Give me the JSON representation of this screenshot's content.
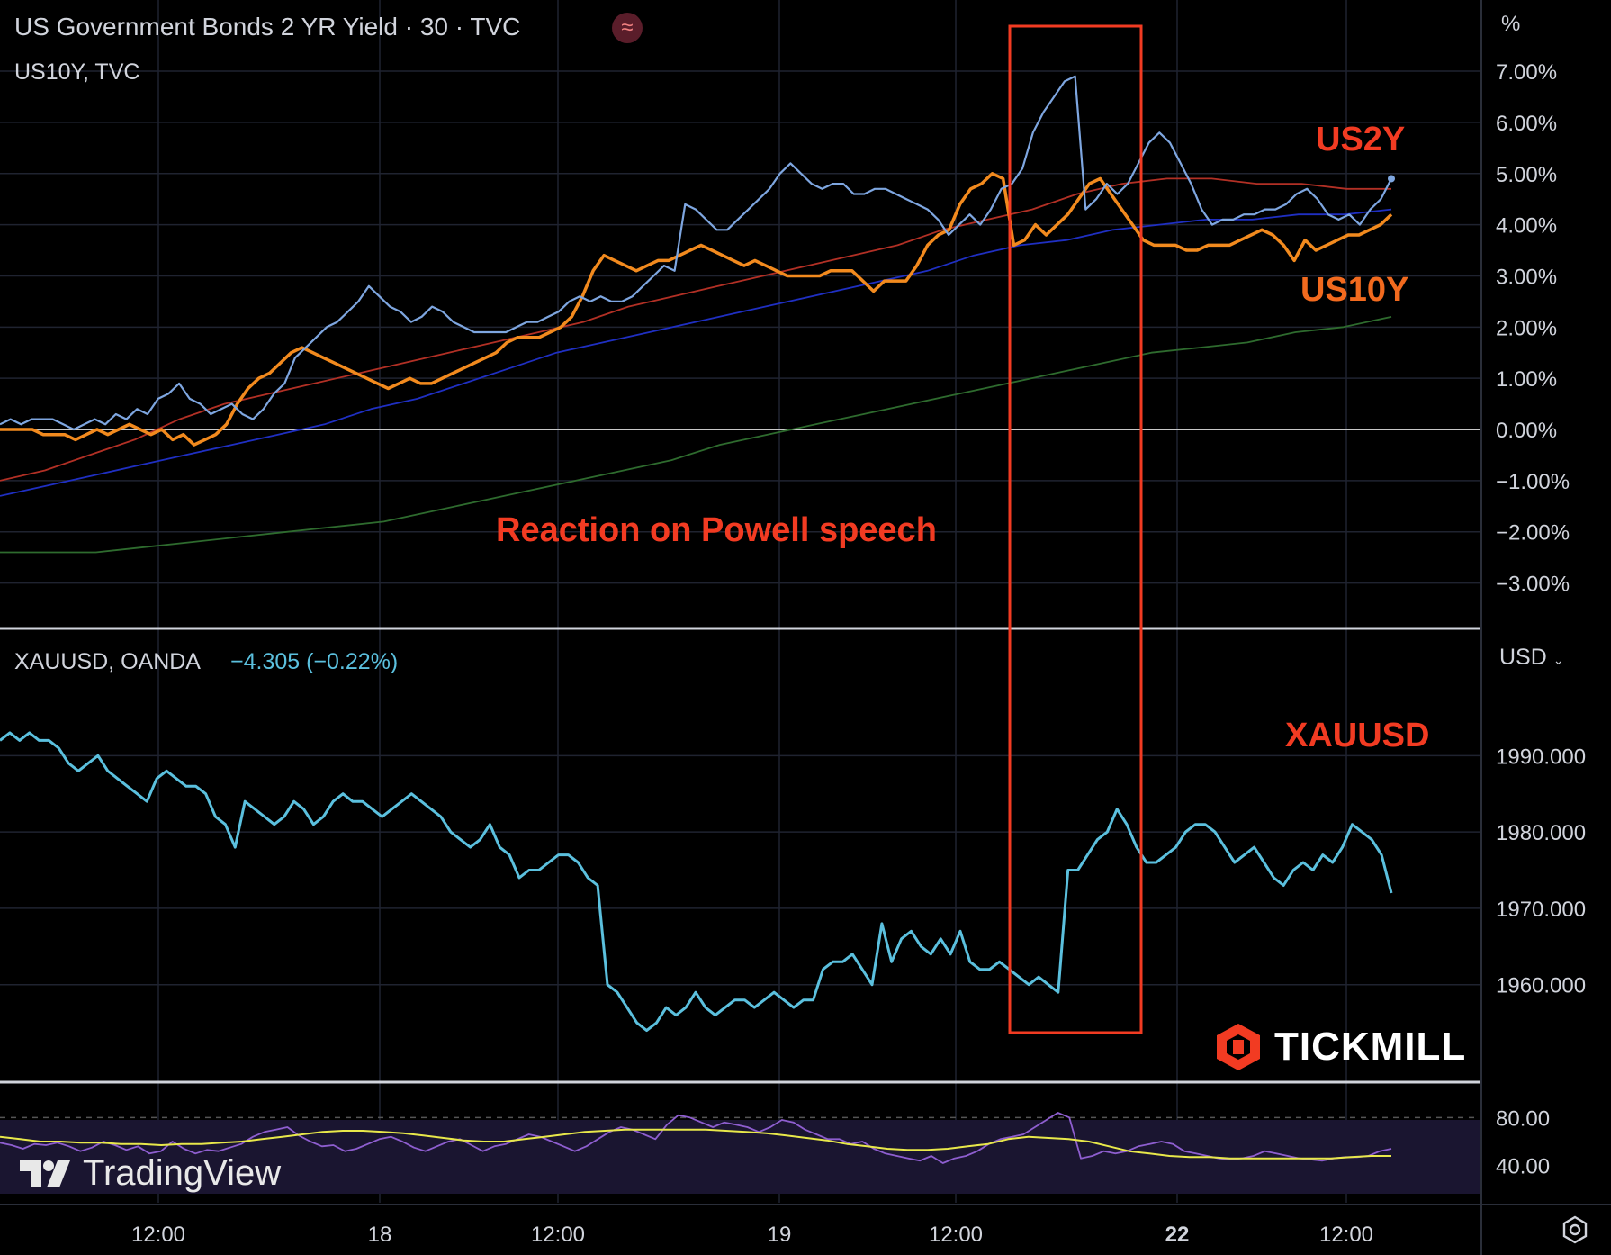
{
  "header": {
    "title": "US Government Bonds 2 YR Yield · 30 · TVC",
    "secondary_symbol": "US10Y, TVC",
    "indicator_badge": "≈"
  },
  "lower_header": {
    "symbol": "XAUUSD, OANDA",
    "change": "−4.305 (−0.22%)",
    "currency": "USD"
  },
  "annotations": {
    "us2y": "US2Y",
    "us10y": "US10Y",
    "xauusd": "XAUUSD",
    "powell": "Reaction on Powell speech"
  },
  "branding": {
    "tradingview": "TradingView",
    "tickmill": "TICKMILL"
  },
  "icons": {
    "settings": "gear-icon"
  },
  "colors": {
    "us2y": "#7ea6e0",
    "us10y": "#f28a1e",
    "xauusd": "#5bc0de",
    "ma_red": "#b23025",
    "ma_blue": "#1f2fc2",
    "ma_green": "#2e6b2e",
    "rsi": "#8e5ecf",
    "rsi_ma": "#e8e84a",
    "annotation": "#f23b22"
  },
  "chart_data": [
    {
      "type": "line",
      "panel": "yields",
      "ylabel": "%",
      "ylim": [
        -3.5,
        7.3
      ],
      "y_ticks": [
        "7.00%",
        "6.00%",
        "5.00%",
        "4.00%",
        "3.00%",
        "2.00%",
        "1.00%",
        "0.00%",
        "−1.00%",
        "−2.00%",
        "−3.00%"
      ],
      "y_tick_values": [
        7,
        6,
        5,
        4,
        3,
        2,
        1,
        0,
        -1,
        -2,
        -3
      ],
      "x_ticks": [
        "12:00",
        "18",
        "12:00",
        "19",
        "12:00",
        "22",
        "12:00"
      ],
      "series": [
        {
          "name": "US2Y",
          "values": [
            0.1,
            0.2,
            0.1,
            0.2,
            0.2,
            0.2,
            0.1,
            0.0,
            0.1,
            0.2,
            0.1,
            0.3,
            0.2,
            0.4,
            0.3,
            0.6,
            0.7,
            0.9,
            0.6,
            0.5,
            0.3,
            0.4,
            0.5,
            0.3,
            0.2,
            0.4,
            0.7,
            0.9,
            1.4,
            1.6,
            1.8,
            2.0,
            2.1,
            2.3,
            2.5,
            2.8,
            2.6,
            2.4,
            2.3,
            2.1,
            2.2,
            2.4,
            2.3,
            2.1,
            2.0,
            1.9,
            1.9,
            1.9,
            1.9,
            2.0,
            2.1,
            2.1,
            2.2,
            2.3,
            2.5,
            2.6,
            2.5,
            2.6,
            2.5,
            2.5,
            2.6,
            2.8,
            3.0,
            3.2,
            3.1,
            4.4,
            4.3,
            4.1,
            3.9,
            3.9,
            4.1,
            4.3,
            4.5,
            4.7,
            5.0,
            5.2,
            5.0,
            4.8,
            4.7,
            4.8,
            4.8,
            4.6,
            4.6,
            4.7,
            4.7,
            4.6,
            4.5,
            4.4,
            4.3,
            4.1,
            3.8,
            4.0,
            4.2,
            4.0,
            4.3,
            4.7,
            4.8,
            5.1,
            5.8,
            6.2,
            6.5,
            6.8,
            6.9,
            4.3,
            4.5,
            4.8,
            4.6,
            4.8,
            5.2,
            5.6,
            5.8,
            5.6,
            5.2,
            4.8,
            4.3,
            4.0,
            4.1,
            4.1,
            4.2,
            4.2,
            4.3,
            4.3,
            4.4,
            4.6,
            4.7,
            4.5,
            4.2,
            4.1,
            4.2,
            4.0,
            4.3,
            4.5,
            4.9
          ]
        },
        {
          "name": "US10Y",
          "values": [
            0.0,
            0.0,
            0.0,
            0.0,
            -0.1,
            -0.1,
            -0.1,
            -0.2,
            -0.1,
            0.0,
            -0.1,
            0.0,
            0.1,
            0.0,
            -0.1,
            0.0,
            -0.2,
            -0.1,
            -0.3,
            -0.2,
            -0.1,
            0.1,
            0.5,
            0.8,
            1.0,
            1.1,
            1.3,
            1.5,
            1.6,
            1.5,
            1.4,
            1.3,
            1.2,
            1.1,
            1.0,
            0.9,
            0.8,
            0.9,
            1.0,
            0.9,
            0.9,
            1.0,
            1.1,
            1.2,
            1.3,
            1.4,
            1.5,
            1.7,
            1.8,
            1.8,
            1.8,
            1.9,
            2.0,
            2.2,
            2.6,
            3.1,
            3.4,
            3.3,
            3.2,
            3.1,
            3.2,
            3.3,
            3.3,
            3.4,
            3.5,
            3.6,
            3.5,
            3.4,
            3.3,
            3.2,
            3.3,
            3.2,
            3.1,
            3.0,
            3.0,
            3.0,
            3.0,
            3.1,
            3.1,
            3.1,
            2.9,
            2.7,
            2.9,
            2.9,
            2.9,
            3.2,
            3.6,
            3.8,
            3.9,
            4.4,
            4.7,
            4.8,
            5.0,
            4.9,
            3.6,
            3.7,
            4.0,
            3.8,
            4.0,
            4.2,
            4.5,
            4.8,
            4.9,
            4.6,
            4.3,
            4.0,
            3.7,
            3.6,
            3.6,
            3.6,
            3.5,
            3.5,
            3.6,
            3.6,
            3.6,
            3.7,
            3.8,
            3.9,
            3.8,
            3.6,
            3.3,
            3.7,
            3.5,
            3.6,
            3.7,
            3.8,
            3.8,
            3.9,
            4.0,
            4.2
          ]
        },
        {
          "values": [
            -1.0,
            -0.8,
            -0.5,
            -0.2,
            0.2,
            0.5,
            0.7,
            0.9,
            1.1,
            1.3,
            1.5,
            1.7,
            1.9,
            2.1,
            2.4,
            2.6,
            2.8,
            3.0,
            3.2,
            3.4,
            3.6,
            3.9,
            4.1,
            4.3,
            4.6,
            4.8,
            4.9,
            4.9,
            4.8,
            4.8,
            4.7,
            4.7
          ]
        },
        {
          "values": [
            -1.3,
            -1.1,
            -0.9,
            -0.7,
            -0.5,
            -0.3,
            -0.1,
            0.1,
            0.4,
            0.6,
            0.9,
            1.2,
            1.5,
            1.7,
            1.9,
            2.1,
            2.3,
            2.5,
            2.7,
            2.9,
            3.1,
            3.4,
            3.6,
            3.7,
            3.9,
            4.0,
            4.1,
            4.1,
            4.2,
            4.2,
            4.3
          ]
        },
        {
          "values": [
            -2.4,
            -2.4,
            -2.4,
            -2.3,
            -2.2,
            -2.1,
            -2.0,
            -1.9,
            -1.8,
            -1.6,
            -1.4,
            -1.2,
            -1.0,
            -0.8,
            -0.6,
            -0.3,
            -0.1,
            0.1,
            0.3,
            0.5,
            0.7,
            0.9,
            1.1,
            1.3,
            1.5,
            1.6,
            1.7,
            1.9,
            2.0,
            2.2
          ]
        }
      ]
    },
    {
      "type": "line",
      "panel": "gold",
      "ylabel": "USD",
      "ylim": [
        1951,
        1997
      ],
      "y_ticks": [
        "1990.000",
        "1980.000",
        "1970.000",
        "1960.000"
      ],
      "y_tick_values": [
        1990,
        1980,
        1970,
        1960
      ],
      "series": [
        {
          "name": "XAUUSD",
          "values": [
            1992,
            1993,
            1992,
            1993,
            1992,
            1992,
            1991,
            1989,
            1988,
            1989,
            1990,
            1988,
            1987,
            1986,
            1985,
            1984,
            1987,
            1988,
            1987,
            1986,
            1986,
            1985,
            1982,
            1981,
            1978,
            1984,
            1983,
            1982,
            1981,
            1982,
            1984,
            1983,
            1981,
            1982,
            1984,
            1985,
            1984,
            1984,
            1983,
            1982,
            1983,
            1984,
            1985,
            1984,
            1983,
            1982,
            1980,
            1979,
            1978,
            1979,
            1981,
            1978,
            1977,
            1974,
            1975,
            1975,
            1976,
            1977,
            1977,
            1976,
            1974,
            1973,
            1960,
            1959,
            1957,
            1955,
            1954,
            1955,
            1957,
            1956,
            1957,
            1959,
            1957,
            1956,
            1957,
            1958,
            1958,
            1957,
            1958,
            1959,
            1958,
            1957,
            1958,
            1958,
            1962,
            1963,
            1963,
            1964,
            1962,
            1960,
            1968,
            1963,
            1966,
            1967,
            1965,
            1964,
            1966,
            1964,
            1967,
            1963,
            1962,
            1962,
            1963,
            1962,
            1961,
            1960,
            1961,
            1960,
            1959,
            1975,
            1975,
            1977,
            1979,
            1980,
            1983,
            1981,
            1978,
            1976,
            1976,
            1977,
            1978,
            1980,
            1981,
            1981,
            1980,
            1978,
            1976,
            1977,
            1978,
            1976,
            1974,
            1973,
            1975,
            1976,
            1975,
            1977,
            1976,
            1978,
            1981,
            1980,
            1979,
            1977,
            1972
          ]
        }
      ]
    },
    {
      "type": "line",
      "panel": "rsi",
      "ylim": [
        30,
        90
      ],
      "y_ticks": [
        "80.00",
        "40.00"
      ],
      "y_tick_values": [
        80,
        40
      ],
      "series": [
        {
          "values": [
            59,
            57,
            54,
            58,
            57,
            59,
            56,
            52,
            55,
            60,
            57,
            53,
            56,
            50,
            52,
            60,
            54,
            50,
            53,
            52,
            55,
            58,
            64,
            68,
            70,
            72,
            65,
            60,
            56,
            57,
            52,
            54,
            58,
            62,
            64,
            60,
            55,
            52,
            56,
            60,
            62,
            57,
            52,
            56,
            58,
            62,
            66,
            64,
            60,
            56,
            52,
            56,
            62,
            68,
            72,
            70,
            66,
            62,
            74,
            82,
            80,
            76,
            72,
            76,
            74,
            72,
            68,
            72,
            78,
            76,
            70,
            66,
            62,
            62,
            58,
            60,
            54,
            50,
            48,
            46,
            44,
            48,
            42,
            46,
            48,
            52,
            58,
            62,
            64,
            66,
            72,
            78,
            84,
            80,
            46,
            48,
            52,
            50,
            52,
            56,
            58,
            60,
            58,
            52,
            50,
            48,
            46,
            45,
            46,
            48,
            52,
            50,
            48,
            46,
            45,
            44,
            46,
            47,
            47,
            48,
            52,
            54
          ]
        },
        {
          "values": [
            64,
            62,
            60,
            60,
            59,
            59,
            58,
            58,
            57,
            58,
            58,
            59,
            60,
            62,
            64,
            66,
            68,
            69,
            69,
            68,
            67,
            65,
            63,
            61,
            60,
            60,
            62,
            64,
            66,
            68,
            69,
            70,
            70,
            70,
            70,
            70,
            69,
            68,
            67,
            65,
            63,
            61,
            58,
            56,
            54,
            53,
            53,
            54,
            56,
            58,
            62,
            64,
            63,
            62,
            60,
            56,
            52,
            50,
            48,
            47,
            47,
            46,
            46,
            46,
            46,
            46,
            46,
            47,
            48,
            48
          ]
        }
      ]
    }
  ]
}
